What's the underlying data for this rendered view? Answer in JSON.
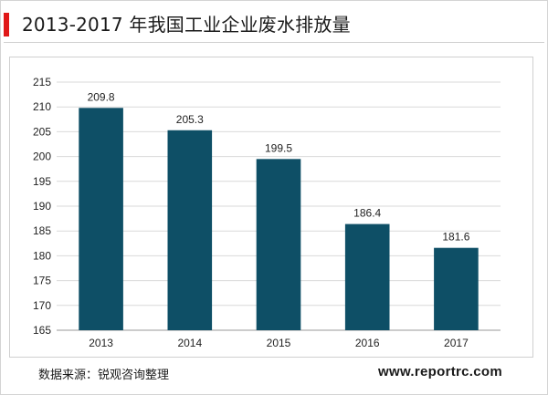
{
  "header": {
    "title": "2013-2017 年我国工业企业废水排放量"
  },
  "footer": {
    "source": "数据来源：锐观咨询整理",
    "website": "www.reportrc.com"
  },
  "colors": {
    "bar": "#0e4f66",
    "accent": "#e01818"
  },
  "chart_data": {
    "type": "bar",
    "title": "2013-2017 年我国工业企业废水排放量",
    "xlabel": "",
    "ylabel": "",
    "categories": [
      "2013",
      "2014",
      "2015",
      "2016",
      "2017"
    ],
    "values": [
      209.8,
      205.3,
      199.5,
      186.4,
      181.6
    ],
    "data_labels": [
      "209.8",
      "205.3",
      "199.5",
      "186.4",
      "181.6"
    ],
    "ylim": [
      165,
      215
    ],
    "yticks": [
      "165",
      "170",
      "175",
      "180",
      "185",
      "190",
      "195",
      "200",
      "205",
      "210",
      "215"
    ],
    "grid": true,
    "legend": "none"
  }
}
